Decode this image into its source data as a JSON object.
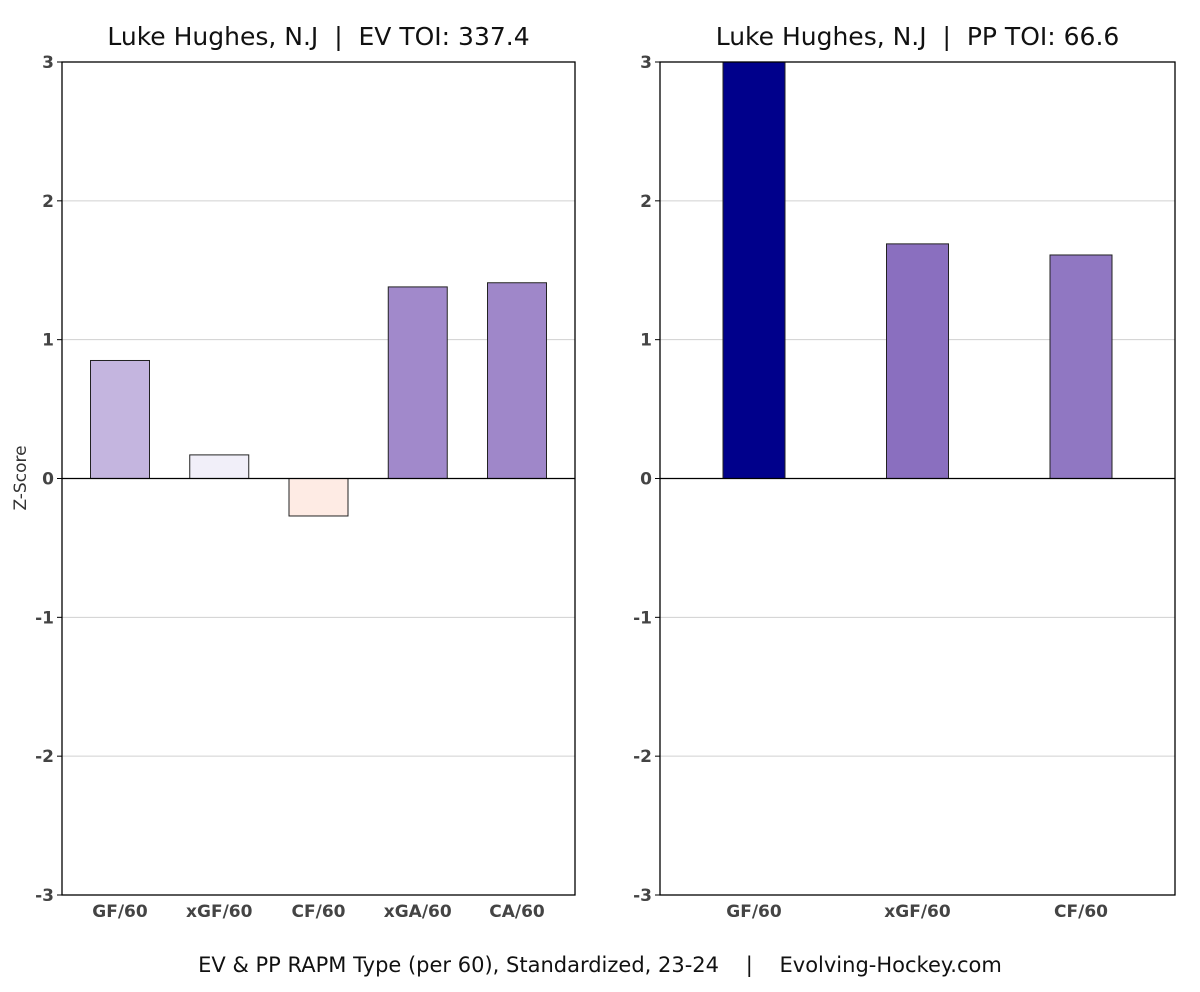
{
  "chart_data": [
    {
      "type": "bar",
      "title": "Luke Hughes, N.J  |  EV TOI: 337.4",
      "ylabel": "Z-Score",
      "ylim": [
        -3,
        3
      ],
      "yticks": [
        "3",
        "2",
        "1",
        "0",
        "-1",
        "-2",
        "-3"
      ],
      "grid": true,
      "categories": [
        "GF/60",
        "xGF/60",
        "CF/60",
        "xGA/60",
        "CA/60"
      ],
      "values": [
        0.85,
        0.17,
        -0.27,
        1.38,
        1.41
      ],
      "colors": [
        "#c4b5df",
        "#f1eff9",
        "#feebe4",
        "#a189cb",
        "#9f87c9"
      ]
    },
    {
      "type": "bar",
      "title": "Luke Hughes, N.J  |  PP TOI: 66.6",
      "ylim": [
        -3,
        3
      ],
      "yticks": [
        "3",
        "2",
        "1",
        "0",
        "-1",
        "-2",
        "-3"
      ],
      "grid": true,
      "categories": [
        "GF/60",
        "xGF/60",
        "CF/60"
      ],
      "values": [
        3.0,
        1.69,
        1.61
      ],
      "colors": [
        "#00008b",
        "#8a6fbf",
        "#9077c2"
      ]
    }
  ],
  "caption": "EV & PP RAPM Type (per 60), Standardized, 23-24    |    Evolving-Hockey.com"
}
